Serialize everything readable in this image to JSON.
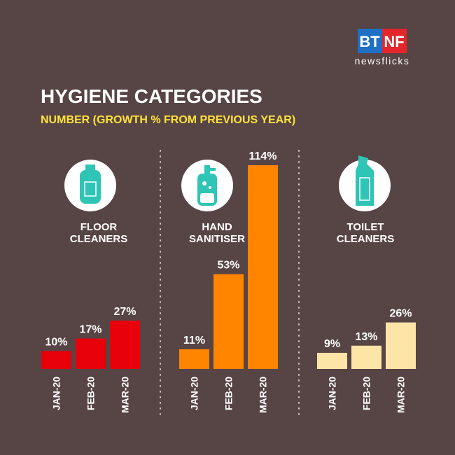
{
  "logo": {
    "left": "BT",
    "right": "NF",
    "tagline": "newsflicks"
  },
  "header": {
    "title": "HYGIENE CATEGORIES",
    "subtitle": "NUMBER (GROWTH % FROM PREVIOUS YEAR)"
  },
  "chart_data": [
    {
      "type": "bar",
      "title": "FLOOR CLEANERS",
      "categories": [
        "JAN-20",
        "FEB-20",
        "MAR-20"
      ],
      "values": [
        10,
        17,
        27
      ],
      "value_labels": [
        "10%",
        "17%",
        "27%"
      ],
      "color": "#e8000b"
    },
    {
      "type": "bar",
      "title": "HAND SANITISER",
      "categories": [
        "JAN-20",
        "FEB-20",
        "MAR-20"
      ],
      "values": [
        11,
        53,
        114
      ],
      "value_labels": [
        "11%",
        "53%",
        "114%"
      ],
      "color": "#ff8400"
    },
    {
      "type": "bar",
      "title": "TOILET CLEANERS",
      "categories": [
        "JAN-20",
        "FEB-20",
        "MAR-20"
      ],
      "values": [
        9,
        13,
        26
      ],
      "value_labels": [
        "9%",
        "13%",
        "26%"
      ],
      "color": "#fce5a6"
    }
  ]
}
